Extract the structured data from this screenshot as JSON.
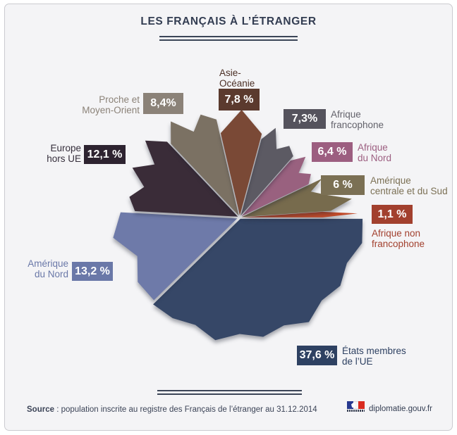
{
  "chart_data": {
    "type": "pie",
    "title": "LES FRANÇAIS À L’ÉTRANGER",
    "unit": "%",
    "start_angle": "east",
    "direction": "clockwise",
    "style": "starburst / torn-paper pie",
    "slices": [
      {
        "label": "États membres de l’UE",
        "label_lines": [
          "États membres",
          "de l’UE"
        ],
        "value": 37.6,
        "value_text": "37,6 %",
        "slice_color": "#364767",
        "box_color": "#2e4162",
        "text_color": "#2e4162"
      },
      {
        "label": "Amérique du Nord",
        "label_lines": [
          "Amérique",
          "du Nord"
        ],
        "value": 13.2,
        "value_text": "13,2 %",
        "slice_color": "#6e7aa9",
        "box_color": "#6a78a8",
        "text_color": "#6a78a8"
      },
      {
        "label": "Europe hors UE",
        "label_lines": [
          "Europe",
          "hors UE"
        ],
        "value": 12.1,
        "value_text": "12,1 %",
        "slice_color": "#3a2c38",
        "box_color": "#2d2330",
        "text_color": "#352e3b"
      },
      {
        "label": "Proche et Moyen-Orient",
        "label_lines": [
          "Proche et",
          "Moyen-Orient"
        ],
        "value": 8.4,
        "value_text": "8,4%",
        "slice_color": "#7b7163",
        "box_color": "#8b8278",
        "text_color": "#8b8278"
      },
      {
        "label": "Asie-Océanie",
        "label_lines": [
          "Asie-",
          "Océanie"
        ],
        "value": 7.8,
        "value_text": "7,8 %",
        "slice_color": "#7a4936",
        "box_color": "#5b3a2e",
        "text_color": "#4a2e24"
      },
      {
        "label": "Afrique francophone",
        "label_lines": [
          "Afrique",
          "francophone"
        ],
        "value": 7.3,
        "value_text": "7,3%",
        "slice_color": "#5c5a63",
        "box_color": "#55535d",
        "text_color": "#63626b"
      },
      {
        "label": "Afrique du Nord",
        "label_lines": [
          "Afrique",
          "du Nord"
        ],
        "value": 6.4,
        "value_text": "6,4 %",
        "slice_color": "#99617f",
        "box_color": "#9c5e80",
        "text_color": "#9c5e80"
      },
      {
        "label": "Amérique centrale et du Sud",
        "label_lines": [
          "Amérique",
          "centrale et du Sud"
        ],
        "value": 6.0,
        "value_text": "6 %",
        "slice_color": "#776b4d",
        "box_color": "#7b7054",
        "text_color": "#7b7054"
      },
      {
        "label": "Afrique non francophone",
        "label_lines": [
          "Afrique non",
          "francophone"
        ],
        "value": 1.1,
        "value_text": "1,1 %",
        "slice_color": "#c04b2b",
        "box_color": "#a2402e",
        "text_color": "#a2402e"
      }
    ]
  },
  "footer": {
    "source_bold": "Source",
    "source_text": " : population inscrite au registre des Français de l’étranger au 31.12.2014",
    "site": "diplomatie.gouv.fr",
    "logo": "french-government-flag-logo"
  }
}
